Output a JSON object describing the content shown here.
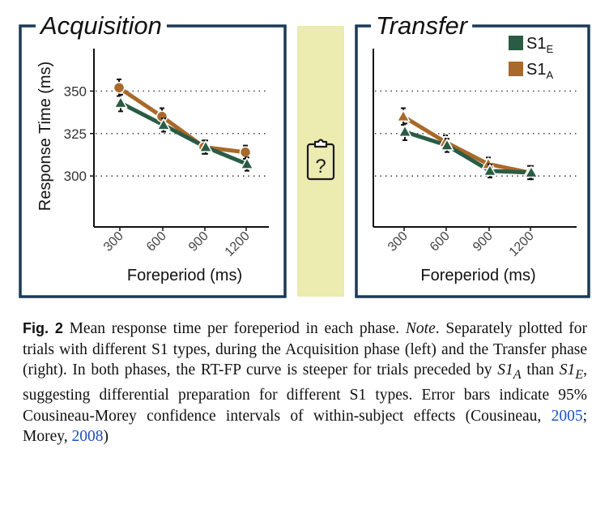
{
  "colors": {
    "panel_border": "#1c3a57",
    "s1e": "#2a5c45",
    "s1a": "#a8692a",
    "middle_strip": "#ecebb0",
    "icon": "#1a1a1a",
    "grid": "#444444",
    "link": "#1f4fbf"
  },
  "middle": {
    "icon": "clipboard-question-icon",
    "icon_text": "?"
  },
  "chart_data": [
    {
      "type": "line",
      "title": "Acquisition",
      "xlabel": "Foreperiod (ms)",
      "ylabel": "Response Time (ms)",
      "categories": [
        "300",
        "600",
        "900",
        "1200"
      ],
      "yticks": [
        "300",
        "325",
        "350"
      ],
      "ylim": [
        270,
        375
      ],
      "grid": "horizontal dotted",
      "series": [
        {
          "name": "S1E",
          "color": "#2a5c45",
          "marker": "triangle",
          "values": [
            343,
            330,
            317,
            307
          ],
          "err": [
            3,
            2,
            2,
            2
          ]
        },
        {
          "name": "S1A",
          "color": "#a8692a",
          "marker": "circle",
          "values": [
            352,
            335,
            317,
            314
          ],
          "err": [
            3,
            3,
            2,
            2
          ]
        }
      ]
    },
    {
      "type": "line",
      "title": "Transfer",
      "xlabel": "Foreperiod (ms)",
      "ylabel": "",
      "categories": [
        "300",
        "600",
        "900",
        "1200"
      ],
      "yticks": [],
      "ylim": [
        270,
        375
      ],
      "grid": "horizontal dotted",
      "legend": {
        "position": "top-right",
        "items": [
          {
            "base": "S1",
            "sub": "E",
            "color": "#2a5c45"
          },
          {
            "base": "S1",
            "sub": "A",
            "color": "#a8692a"
          }
        ]
      },
      "series": [
        {
          "name": "S1E",
          "color": "#2a5c45",
          "marker": "triangle",
          "values": [
            326,
            318,
            303,
            302
          ],
          "err": [
            3,
            2,
            2,
            2
          ]
        },
        {
          "name": "S1A",
          "color": "#a8692a",
          "marker": "triangle",
          "values": [
            335,
            320,
            307,
            302
          ],
          "err": [
            3,
            2,
            2,
            2
          ]
        }
      ]
    }
  ],
  "caption": {
    "label": "Fig. 2",
    "text1": " Mean response time per foreperiod in each phase. ",
    "note": "Note",
    "text2": ". Separately plotted for trials with different S1 types, during the Acquisition phase (left) and the Transfer phase (right). In both phases, the RT-FP curve is steeper for trials preceded by ",
    "math_a": "S1",
    "math_a_sub": "A",
    "text3": " than ",
    "math_e": "S1",
    "math_e_sub": "E",
    "text4": ", suggesting differential preparation for different S1 types. Error bars indicate 95% Cousineau-Morey confidence intervals of within-subject effects (Cousineau, ",
    "cite1": "2005",
    "text5": "; Morey, ",
    "cite2": "2008",
    "text6": ")"
  }
}
